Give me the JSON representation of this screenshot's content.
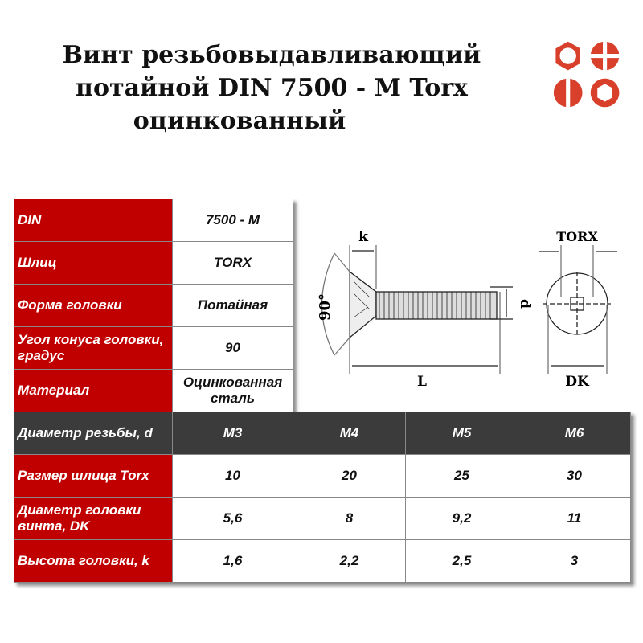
{
  "title": {
    "lines": [
      "Винт резьбовыдавливающий",
      "потайной DIN 7500 - M Torx",
      "оцинкованный"
    ]
  },
  "logo": {
    "name": "bolt-heads-logo",
    "color": "#d9402b"
  },
  "specs": [
    {
      "label": "DIN",
      "value": "7500 - M"
    },
    {
      "label": "Шлиц",
      "value": "TORX"
    },
    {
      "label": "Форма головки",
      "value": "Потайная"
    },
    {
      "label": "Угол конуса головки, градус",
      "value": "90"
    },
    {
      "label": "Материал",
      "value": "Оцинкованная сталь"
    }
  ],
  "sizes": {
    "header": {
      "label": "Диаметр резьбы, d",
      "values": [
        "M3",
        "M4",
        "M5",
        "M6"
      ]
    },
    "rows": [
      {
        "label": "Размер шлица Torx",
        "values": [
          "10",
          "20",
          "25",
          "30"
        ]
      },
      {
        "label": "Диаметр головки винта, DK",
        "values": [
          "5,6",
          "8",
          "9,2",
          "11"
        ]
      },
      {
        "label": "Высота головки, k",
        "values": [
          "1,6",
          "2,2",
          "2,5",
          "3"
        ]
      }
    ]
  },
  "drawing": {
    "k": "k",
    "angle": "90°",
    "d": "d",
    "L": "L",
    "torx": "TORX",
    "dk": "DK"
  },
  "colors": {
    "label_bg": "#c00000",
    "header_bg": "#3b3b3b"
  }
}
